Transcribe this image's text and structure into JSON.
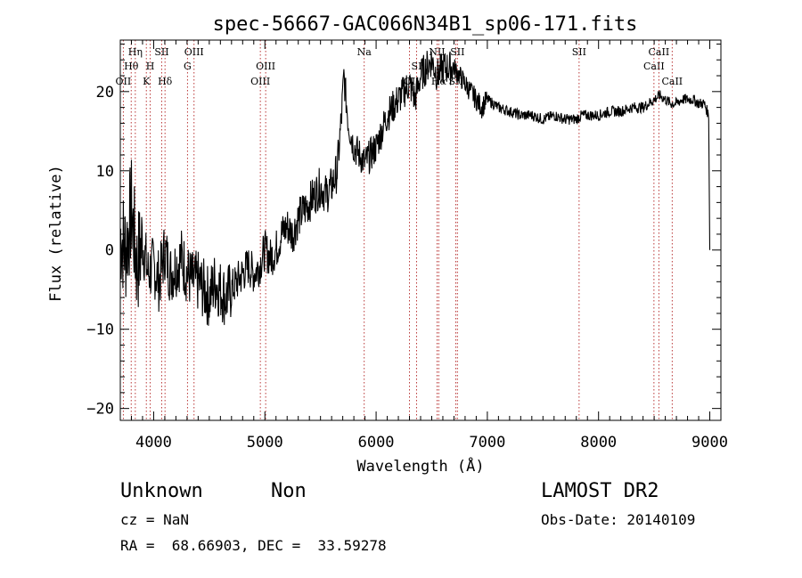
{
  "chart_data": {
    "type": "line",
    "title": "spec-56667-GAC066N34B1_sp06-171.fits",
    "xlabel": "Wavelength (Å)",
    "ylabel": "Flux (relative)",
    "xlim": [
      3700,
      9100
    ],
    "ylim": [
      -21.5,
      26.5
    ],
    "x_ticks": [
      4000,
      5000,
      6000,
      7000,
      8000,
      9000
    ],
    "x_tick_labels": [
      "4000",
      "5000",
      "6000",
      "7000",
      "8000",
      "9000"
    ],
    "y_ticks": [
      -20,
      -10,
      0,
      10,
      20
    ],
    "y_tick_labels": [
      "−20",
      "−10",
      "0",
      "10",
      "20"
    ],
    "grid": false,
    "line_color": "#000000",
    "marker_color": "#b22222",
    "series": [
      {
        "x": [
          3700,
          3750,
          3800,
          3850,
          3900,
          3950,
          4000,
          4050,
          4100,
          4150,
          4200,
          4250,
          4300,
          4350,
          4400,
          4450,
          4500,
          4550,
          4600,
          4650,
          4700,
          4750,
          4800,
          4850,
          4900,
          4950,
          5000,
          5050,
          5100,
          5150,
          5200,
          5250,
          5300,
          5350,
          5400,
          5450,
          5500,
          5550,
          5600,
          5650,
          5690,
          5710,
          5750,
          5800,
          5850,
          5900,
          5950,
          6000,
          6050,
          6100,
          6150,
          6200,
          6250,
          6300,
          6350,
          6400,
          6450,
          6500,
          6550,
          6600,
          6650,
          6700,
          6750,
          6800,
          6850,
          6900,
          6950,
          7000,
          7100,
          7200,
          7300,
          7400,
          7500,
          7600,
          7700,
          7800,
          7850,
          7900,
          8000,
          8100,
          8200,
          8300,
          8400,
          8500,
          8550,
          8600,
          8650,
          8700,
          8750,
          8800,
          8850,
          8900,
          8950,
          8990,
          9000
        ],
        "y": [
          2,
          0,
          5,
          -2,
          1,
          -3,
          -2,
          -4,
          0,
          -3,
          -2,
          -1,
          -3,
          -4,
          -4,
          -5,
          -6,
          -4,
          -5,
          -6,
          -5,
          -4,
          -3,
          -2,
          -3,
          -2,
          0,
          -1,
          0,
          2,
          3,
          2,
          4,
          5,
          6,
          7,
          8,
          7,
          8,
          10,
          17,
          22,
          16,
          13,
          12,
          11,
          12,
          13,
          15,
          17,
          18,
          19,
          20,
          21,
          19,
          22,
          23,
          24,
          22,
          23,
          23,
          23,
          22,
          21,
          20,
          19,
          18,
          19,
          18,
          17.5,
          17,
          17,
          16.5,
          17,
          16.5,
          16.5,
          17,
          17,
          17,
          17.5,
          17.5,
          18,
          18,
          19,
          19.5,
          19,
          18.5,
          18.5,
          19,
          19,
          19,
          18.5,
          18.5,
          17,
          0
        ]
      }
    ],
    "annotations": [
      {
        "x": 3727,
        "label": "OII",
        "row": 3
      },
      {
        "x": 3798,
        "label": "Hθ",
        "row": 2
      },
      {
        "x": 3835,
        "label": "Hη",
        "row": 1
      },
      {
        "x": 3934,
        "label": "K",
        "row": 3
      },
      {
        "x": 3969,
        "label": "H",
        "row": 2
      },
      {
        "x": 4072,
        "label": "SII",
        "row": 1
      },
      {
        "x": 4102,
        "label": "Hδ",
        "row": 3
      },
      {
        "x": 4304,
        "label": "G",
        "row": 2
      },
      {
        "x": 4363,
        "label": "OIII",
        "row": 1
      },
      {
        "x": 4959,
        "label": "OIII",
        "row": 3
      },
      {
        "x": 5007,
        "label": "OIII",
        "row": 2
      },
      {
        "x": 5893,
        "label": "Na",
        "row": 1
      },
      {
        "x": 6300,
        "label": "OI",
        "row": 3
      },
      {
        "x": 6364,
        "label": "SI",
        "row": 2
      },
      {
        "x": 6548,
        "label": "NII",
        "row": 1
      },
      {
        "x": 6563,
        "label": "Hα",
        "row": 3
      },
      {
        "x": 6717,
        "label": "SII",
        "row": 3
      },
      {
        "x": 6731,
        "label": "SII",
        "row": 1
      },
      {
        "x": 7825,
        "label": "SII",
        "row": 1
      },
      {
        "x": 8498,
        "label": "CaII",
        "row": 2
      },
      {
        "x": 8542,
        "label": "CaII",
        "row": 1
      },
      {
        "x": 8662,
        "label": "CaII",
        "row": 3
      }
    ]
  },
  "info": {
    "class": "Unknown",
    "subclass": "Non",
    "cz": "cz = NaN",
    "radec": "RA =  68.66903, DEC =  33.59278",
    "survey": "LAMOST DR2",
    "obs_date": "Obs-Date: 20140109"
  }
}
